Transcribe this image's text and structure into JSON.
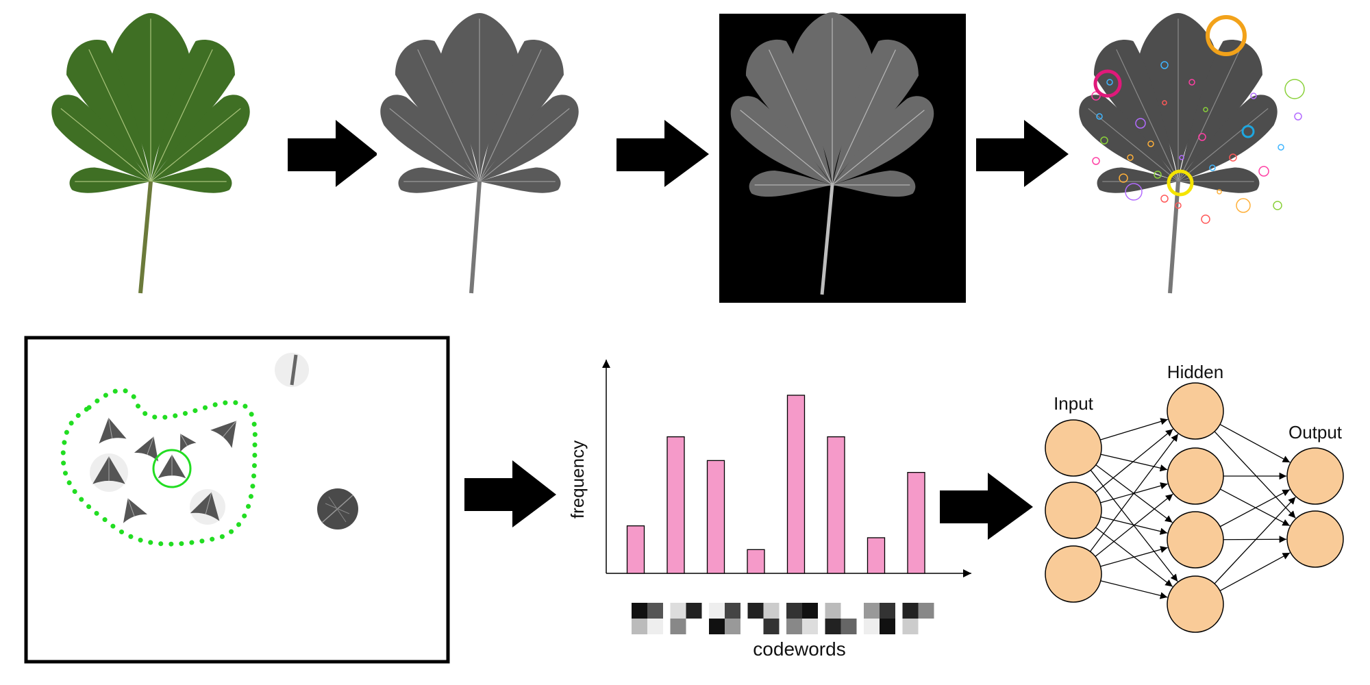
{
  "pipeline": {
    "stages": [
      {
        "id": "color-leaf"
      },
      {
        "id": "grayscale-leaf"
      },
      {
        "id": "segmented-leaf"
      },
      {
        "id": "keypoint-leaf"
      }
    ]
  },
  "histogram": {
    "ylabel": "frequency",
    "xlabel": "codewords",
    "values": [
      4,
      11.5,
      9.5,
      2,
      15,
      11.5,
      3,
      8.5
    ],
    "ylim": [
      0,
      18
    ]
  },
  "network": {
    "layers": [
      {
        "name": "Input",
        "nodes": 3
      },
      {
        "name": "Hidden",
        "nodes": 4
      },
      {
        "name": "Output",
        "nodes": 2
      }
    ]
  },
  "colors": {
    "leaf_green": "#3f6f24",
    "leaf_gray": "#5a5a5a",
    "bar_pink": "#f59ac9",
    "node_fill": "#f9cb98",
    "cluster_green": "#22dd22",
    "kp_orange": "#f2a21a",
    "kp_magenta": "#e0197a",
    "kp_yellow": "#f5e400",
    "kp_cyan": "#1ea7e0"
  }
}
